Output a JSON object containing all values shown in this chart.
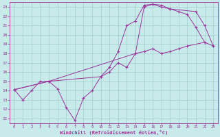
{
  "xlabel": "Windchill (Refroidissement éolien,°C)",
  "xlim": [
    -0.5,
    23.5
  ],
  "ylim": [
    10.5,
    23.5
  ],
  "xticks": [
    0,
    1,
    2,
    3,
    4,
    5,
    6,
    7,
    8,
    9,
    10,
    11,
    12,
    13,
    14,
    15,
    16,
    17,
    18,
    19,
    20,
    21,
    22,
    23
  ],
  "yticks": [
    11,
    12,
    13,
    14,
    15,
    16,
    17,
    18,
    19,
    20,
    21,
    22,
    23
  ],
  "line_color": "#993399",
  "bg_color": "#c8eaea",
  "grid_color": "#a0cccc",
  "series": {
    "line1_x": [
      0,
      1,
      2,
      3,
      4,
      5,
      6,
      7,
      8,
      9,
      10,
      11,
      12,
      13,
      14,
      15,
      16,
      17,
      18,
      19,
      20,
      22,
      23
    ],
    "line1_y": [
      14.1,
      13.0,
      14.0,
      15.0,
      15.0,
      14.2,
      12.2,
      10.8,
      13.2,
      14.0,
      15.5,
      16.0,
      17.0,
      16.5,
      18.0,
      18.2,
      18.5,
      18.0,
      18.2,
      18.5,
      18.8,
      19.2,
      18.8
    ],
    "line2_x": [
      0,
      4,
      10,
      11,
      12,
      13,
      14,
      15,
      16,
      17,
      18,
      19,
      20,
      21,
      22
    ],
    "line2_y": [
      14.1,
      15.0,
      15.5,
      16.5,
      18.2,
      21.0,
      21.5,
      23.2,
      23.3,
      23.2,
      22.8,
      22.5,
      22.2,
      20.8,
      19.2
    ],
    "line3_x": [
      0,
      4,
      14,
      15,
      16,
      17,
      18,
      21,
      22,
      23
    ],
    "line3_y": [
      14.1,
      15.0,
      18.0,
      23.0,
      23.3,
      23.0,
      22.8,
      22.5,
      21.0,
      18.8
    ]
  }
}
